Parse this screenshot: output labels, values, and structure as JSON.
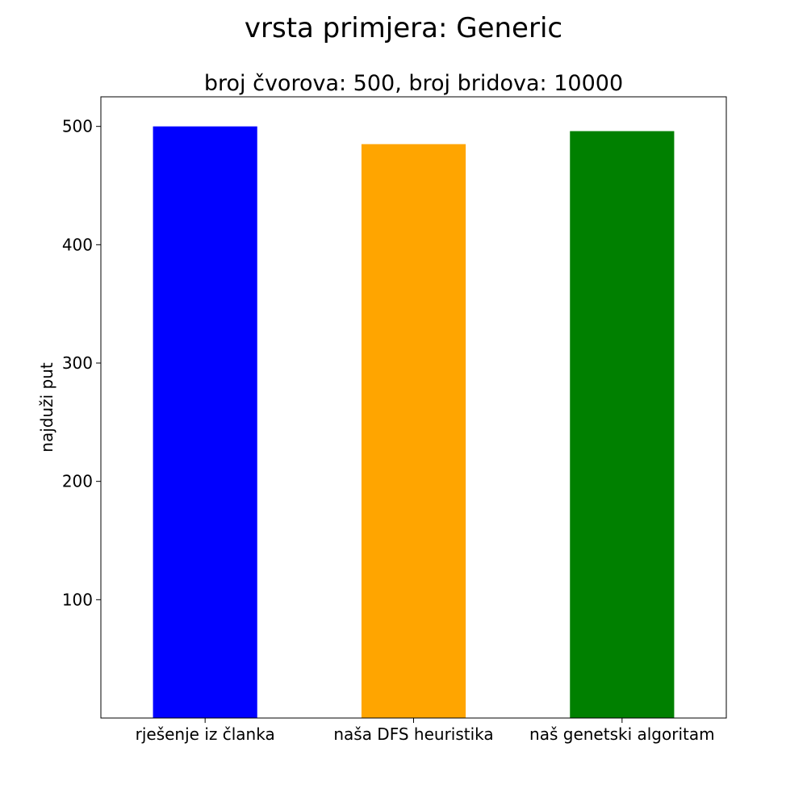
{
  "figure": {
    "suptitle": "vrsta primjera: Generic"
  },
  "chart_data": {
    "type": "bar",
    "title": "broj čvorova: 500, broj bridova: 10000",
    "xlabel": "",
    "ylabel": "najduži put",
    "categories": [
      "rješenje iz članka",
      "naša DFS heuristika",
      "naš genetski algoritam"
    ],
    "values": [
      500,
      485,
      496
    ],
    "colors": [
      "#0000ff",
      "#ffa500",
      "#008000"
    ],
    "ylim": [
      0,
      525
    ],
    "yticks": [
      100,
      200,
      300,
      400,
      500
    ],
    "grid": false,
    "legend": "none"
  }
}
